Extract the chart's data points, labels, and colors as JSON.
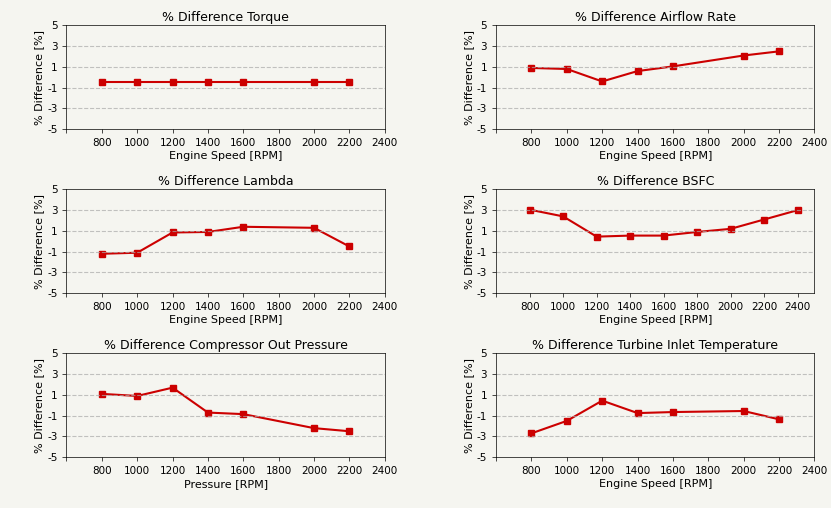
{
  "subplots": [
    {
      "title": "% Difference Torque",
      "xlabel": "Engine Speed [RPM]",
      "ylabel": "% Difference [%]",
      "x": [
        800,
        1000,
        1200,
        1400,
        1600,
        2000,
        2200
      ],
      "y": [
        -0.45,
        -0.45,
        -0.45,
        -0.45,
        -0.45,
        -0.45,
        -0.45
      ],
      "xlim": [
        600,
        2400
      ],
      "xticks": [
        600,
        800,
        1000,
        1200,
        1400,
        1600,
        1800,
        2000,
        2200,
        2400
      ]
    },
    {
      "title": "% Difference Airflow Rate",
      "xlabel": "Engine Speed [RPM]",
      "ylabel": "% Difference [%]",
      "x": [
        800,
        1000,
        1200,
        1400,
        1600,
        2000,
        2200
      ],
      "y": [
        0.9,
        0.8,
        -0.4,
        0.6,
        1.05,
        2.1,
        2.5
      ],
      "xlim": [
        600,
        2400
      ],
      "xticks": [
        600,
        800,
        1000,
        1200,
        1400,
        1600,
        1800,
        2000,
        2200,
        2400
      ]
    },
    {
      "title": "% Difference Lambda",
      "xlabel": "Engine Speed [RPM]",
      "ylabel": "% Difference [%]",
      "x": [
        800,
        1000,
        1200,
        1400,
        1600,
        2000,
        2200
      ],
      "y": [
        -1.2,
        -1.1,
        0.85,
        0.9,
        1.4,
        1.3,
        -0.5
      ],
      "xlim": [
        600,
        2400
      ],
      "xticks": [
        600,
        800,
        1000,
        1200,
        1400,
        1600,
        1800,
        2000,
        2200,
        2400
      ]
    },
    {
      "title": "% Difference BSFC",
      "xlabel": "Engine Speed [RPM]",
      "ylabel": "% Difference [%]",
      "x": [
        800,
        1000,
        1200,
        1400,
        1600,
        1800,
        2000,
        2200,
        2400
      ],
      "y": [
        3.05,
        2.4,
        0.45,
        0.55,
        0.55,
        0.9,
        1.2,
        2.1,
        3.0
      ],
      "xlim": [
        600,
        2500
      ],
      "xticks": [
        600,
        800,
        1000,
        1200,
        1400,
        1600,
        1800,
        2000,
        2200,
        2400
      ]
    },
    {
      "title": "% Difference Compressor Out Pressure",
      "xlabel": "Pressure [RPM]",
      "ylabel": "% Difference [%]",
      "x": [
        800,
        1000,
        1200,
        1400,
        1600,
        2000,
        2200
      ],
      "y": [
        1.1,
        0.9,
        1.7,
        -0.7,
        -0.85,
        -2.2,
        -2.5
      ],
      "xlim": [
        600,
        2400
      ],
      "xticks": [
        600,
        800,
        1000,
        1200,
        1400,
        1600,
        1800,
        2000,
        2200,
        2400
      ]
    },
    {
      "title": "% Difference Turbine Inlet Temperature",
      "xlabel": "Engine Speed [RPM]",
      "ylabel": "% Difference [%]",
      "x": [
        800,
        1000,
        1200,
        1400,
        1600,
        2000,
        2200
      ],
      "y": [
        -2.7,
        -1.5,
        0.45,
        -0.75,
        -0.65,
        -0.55,
        -1.35
      ],
      "xlim": [
        600,
        2400
      ],
      "xticks": [
        600,
        800,
        1000,
        1200,
        1400,
        1600,
        1800,
        2000,
        2200,
        2400
      ]
    }
  ],
  "ylim": [
    -5,
    5
  ],
  "yticks": [
    -5,
    -3,
    -1,
    1,
    3,
    5
  ],
  "line_color": "#cc0000",
  "marker": "s",
  "marker_color": "#cc0000",
  "marker_size": 5,
  "line_width": 1.5,
  "grid_color": "#aaaaaa",
  "grid_style": "--",
  "grid_alpha": 0.7,
  "bg_color": "#f5f5f0",
  "title_fontsize": 9,
  "label_fontsize": 8,
  "tick_fontsize": 7.5
}
